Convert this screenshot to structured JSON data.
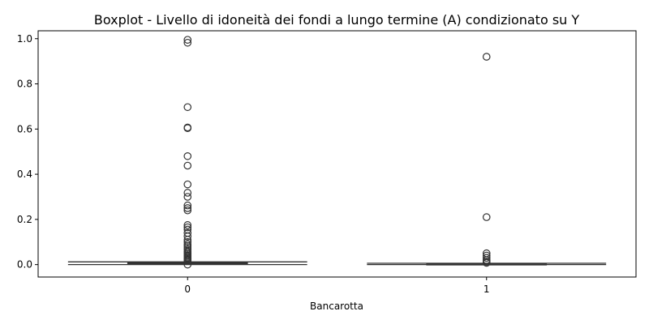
{
  "chart_data": {
    "type": "boxplot",
    "title": "Boxplot - Livello di idoneità dei fondi a lungo termine (A) condizionato su Y",
    "xlabel": "Bancarotta",
    "ylabel": "",
    "categories": [
      "0",
      "1"
    ],
    "ylim": [
      -0.055,
      1.035
    ],
    "yticks": [
      0.0,
      0.2,
      0.4,
      0.6,
      0.8,
      1.0
    ],
    "ytick_labels": [
      "0.0",
      "0.2",
      "0.4",
      "0.6",
      "0.8",
      "1.0"
    ],
    "grid": false,
    "box_color": "#4c72b0",
    "line_color": "#333333",
    "boxes": [
      {
        "category": "0",
        "q1": 0.003,
        "median": 0.006,
        "q3": 0.01,
        "whisker_low": 0.0,
        "whisker_high": 0.012,
        "outliers": [
          0.995,
          0.982,
          0.697,
          0.607,
          0.604,
          0.48,
          0.438,
          0.355,
          0.318,
          0.3,
          0.262,
          0.25,
          0.24,
          0.175,
          0.165,
          0.155,
          0.14,
          0.125,
          0.11,
          0.1,
          0.09,
          0.082,
          0.074,
          0.066,
          0.058,
          0.052,
          0.046,
          0.04,
          0.035,
          0.03,
          0.025,
          0.02,
          0.016,
          0.0
        ]
      },
      {
        "category": "1",
        "q1": 0.001,
        "median": 0.002,
        "q3": 0.004,
        "whisker_low": 0.0,
        "whisker_high": 0.006,
        "outliers": [
          0.92,
          0.21,
          0.05,
          0.04,
          0.03,
          0.02,
          0.013,
          0.008
        ]
      }
    ]
  }
}
